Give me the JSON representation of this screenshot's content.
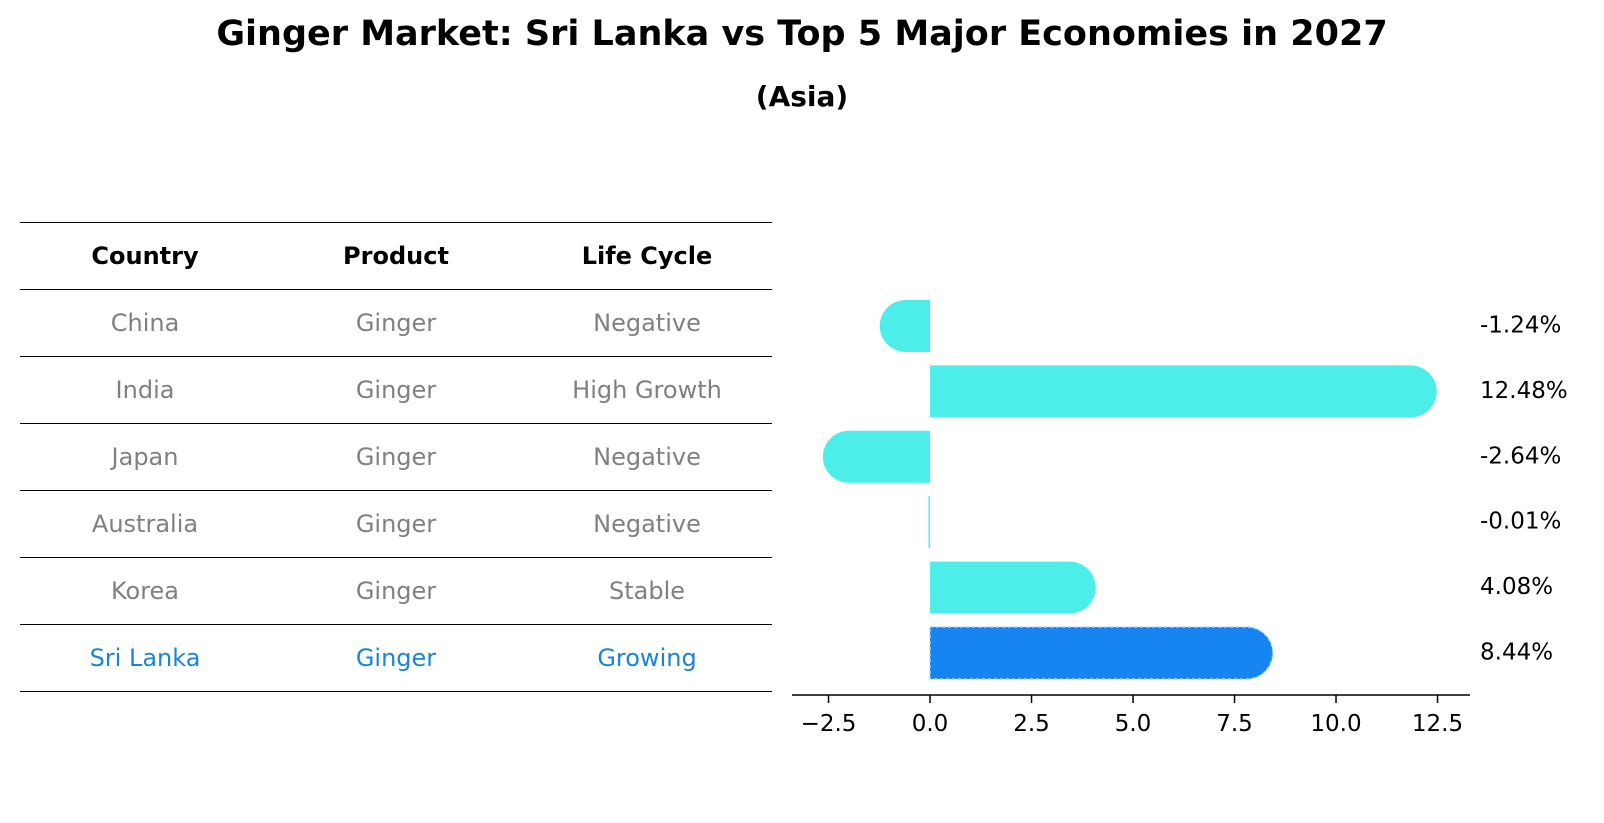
{
  "title": "Ginger Market: Sri Lanka vs Top 5 Major Economies in 2027",
  "subtitle": "(Asia)",
  "table": {
    "headers": [
      "Country",
      "Product",
      "Life Cycle"
    ],
    "rows": [
      {
        "country": "China",
        "product": "Ginger",
        "life_cycle": "Negative"
      },
      {
        "country": "India",
        "product": "Ginger",
        "life_cycle": "High Growth"
      },
      {
        "country": "Japan",
        "product": "Ginger",
        "life_cycle": "Negative"
      },
      {
        "country": "Australia",
        "product": "Ginger",
        "life_cycle": "Negative"
      },
      {
        "country": "Korea",
        "product": "Ginger",
        "life_cycle": "Stable"
      },
      {
        "country": "Sri Lanka",
        "product": "Ginger",
        "life_cycle": "Growing"
      }
    ]
  },
  "colors": {
    "bar": "#4deeea",
    "highlight_bar": "#1685f2",
    "highlight_text": "#1a85d6",
    "muted_text": "#808080"
  },
  "chart_data": {
    "type": "bar",
    "orientation": "horizontal",
    "categories": [
      "China",
      "India",
      "Japan",
      "Australia",
      "Korea",
      "Sri Lanka"
    ],
    "values": [
      -1.24,
      12.48,
      -2.64,
      -0.01,
      4.08,
      8.44
    ],
    "value_labels": [
      "-1.24%",
      "12.48%",
      "-2.64%",
      "-0.01%",
      "4.08%",
      "8.44%"
    ],
    "highlight_index": 5,
    "xlim": [
      -3.4,
      13.3
    ],
    "xticks": [
      -2.5,
      0.0,
      2.5,
      5.0,
      7.5,
      10.0,
      12.5
    ],
    "xtick_labels": [
      "−2.5",
      "0.0",
      "2.5",
      "5.0",
      "7.5",
      "10.0",
      "12.5"
    ],
    "xlabel": "",
    "ylabel": ""
  }
}
